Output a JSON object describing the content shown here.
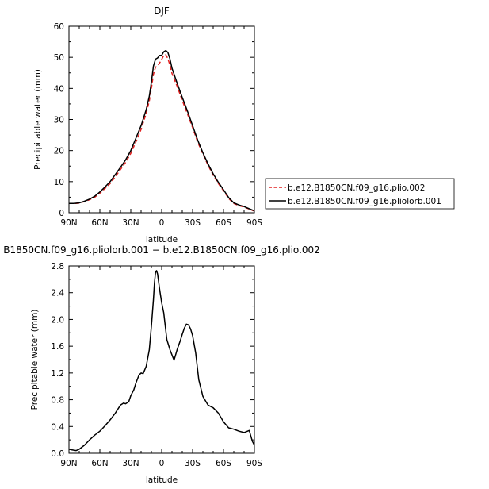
{
  "chart_data": [
    {
      "type": "line",
      "title": "DJF",
      "xlabel": "latitude",
      "ylabel": "Precipitable water (mm)",
      "xlim": [
        90,
        -90
      ],
      "ylim": [
        0,
        60
      ],
      "xticks": [
        90,
        60,
        30,
        0,
        -30,
        -60,
        -90
      ],
      "xtick_labels": [
        "90N",
        "60N",
        "30N",
        "0",
        "30S",
        "60S",
        "90S"
      ],
      "yticks": [
        0,
        10,
        20,
        30,
        40,
        50,
        60
      ],
      "ytick_labels": [
        "0",
        "10",
        "20",
        "30",
        "40",
        "50",
        "60"
      ],
      "grid": false,
      "legend": "right",
      "series": [
        {
          "name": "b.e12.B1850CN.f09_g16.plio.002",
          "color": "#e02020",
          "dash": "dashed",
          "x": [
            90,
            85,
            80,
            75,
            70,
            65,
            60,
            55,
            50,
            45,
            40,
            35,
            30,
            25,
            20,
            15,
            12,
            10,
            8,
            6,
            4,
            2,
            0,
            -2,
            -4,
            -6,
            -8,
            -10,
            -15,
            -20,
            -25,
            -30,
            -35,
            -40,
            -45,
            -50,
            -55,
            -60,
            -65,
            -70,
            -75,
            -80,
            -85,
            -90
          ],
          "y": [
            3.0,
            3.0,
            3.1,
            3.6,
            4.2,
            5.0,
            6.3,
            7.8,
            9.4,
            11.6,
            13.9,
            16.2,
            19.1,
            22.8,
            26.8,
            32.0,
            36.0,
            40.0,
            44.5,
            46.8,
            47.2,
            48.2,
            49.3,
            50.6,
            50.8,
            49.6,
            47.5,
            44.8,
            40.7,
            36.1,
            31.8,
            27.4,
            22.7,
            18.9,
            15.3,
            12.1,
            9.4,
            7.1,
            4.6,
            3.0,
            2.3,
            1.8,
            1.2,
            0.5
          ]
        },
        {
          "name": "b.e12.B1850CN.f09_g16.pliolorb.001",
          "color": "#000000",
          "dash": "solid",
          "x": [
            90,
            85,
            80,
            75,
            70,
            65,
            60,
            55,
            50,
            45,
            40,
            35,
            30,
            25,
            20,
            15,
            12,
            10,
            8,
            6,
            4,
            2,
            0,
            -2,
            -4,
            -6,
            -8,
            -10,
            -15,
            -20,
            -25,
            -30,
            -35,
            -40,
            -45,
            -50,
            -55,
            -60,
            -65,
            -70,
            -75,
            -80,
            -85,
            -90
          ],
          "y": [
            3.0,
            3.0,
            3.2,
            3.7,
            4.4,
            5.3,
            6.7,
            8.3,
            10.0,
            12.3,
            14.6,
            17.0,
            20.0,
            24.0,
            28.0,
            33.2,
            37.5,
            42.0,
            47.2,
            49.4,
            49.8,
            50.6,
            50.6,
            51.8,
            52.2,
            51.6,
            49.5,
            46.5,
            41.7,
            37.1,
            32.7,
            28.0,
            23.3,
            19.3,
            15.7,
            12.5,
            9.8,
            7.4,
            4.9,
            3.2,
            2.5,
            2.0,
            1.3,
            0.6
          ]
        }
      ]
    },
    {
      "type": "line",
      "title": "B1850CN.f09_g16.pliolorb.001 − b.e12.B1850CN.f09_g16.plio.002",
      "xlabel": "latitude",
      "ylabel": "Precipitable water (mm)",
      "xlim": [
        90,
        -90
      ],
      "ylim": [
        0,
        2.8
      ],
      "xticks": [
        90,
        60,
        30,
        0,
        -30,
        -60,
        -90
      ],
      "xtick_labels": [
        "90N",
        "60N",
        "30N",
        "0",
        "30S",
        "60S",
        "90S"
      ],
      "yticks": [
        0,
        0.4,
        0.8,
        1.2,
        1.6,
        2.0,
        2.4,
        2.8
      ],
      "ytick_labels": [
        "0.0",
        "0.4",
        "0.8",
        "1.2",
        "1.6",
        "2.0",
        "2.4",
        "2.8"
      ],
      "grid": false,
      "series": [
        {
          "color": "#000000",
          "dash": "solid",
          "x": [
            90,
            87,
            83,
            80,
            75,
            70,
            65,
            60,
            55,
            50,
            45,
            40,
            37,
            35,
            32,
            30,
            27,
            25,
            22,
            20,
            18,
            15,
            12,
            10,
            8,
            7,
            6,
            5,
            4,
            2,
            0,
            -2,
            -5,
            -8,
            -10,
            -12,
            -15,
            -18,
            -20,
            -22,
            -24,
            -26,
            -28,
            -30,
            -33,
            -36,
            -40,
            -45,
            -50,
            -55,
            -60,
            -65,
            -70,
            -75,
            -80,
            -85,
            -88,
            -90
          ],
          "y": [
            0.06,
            0.05,
            0.04,
            0.06,
            0.12,
            0.2,
            0.27,
            0.33,
            0.41,
            0.5,
            0.6,
            0.72,
            0.75,
            0.74,
            0.77,
            0.86,
            0.95,
            1.05,
            1.17,
            1.2,
            1.19,
            1.3,
            1.55,
            1.9,
            2.3,
            2.55,
            2.7,
            2.73,
            2.68,
            2.45,
            2.25,
            2.1,
            1.7,
            1.55,
            1.47,
            1.39,
            1.55,
            1.68,
            1.78,
            1.87,
            1.93,
            1.92,
            1.86,
            1.76,
            1.5,
            1.1,
            0.85,
            0.72,
            0.68,
            0.6,
            0.47,
            0.38,
            0.36,
            0.33,
            0.31,
            0.34,
            0.18,
            0.12
          ]
        }
      ]
    }
  ]
}
